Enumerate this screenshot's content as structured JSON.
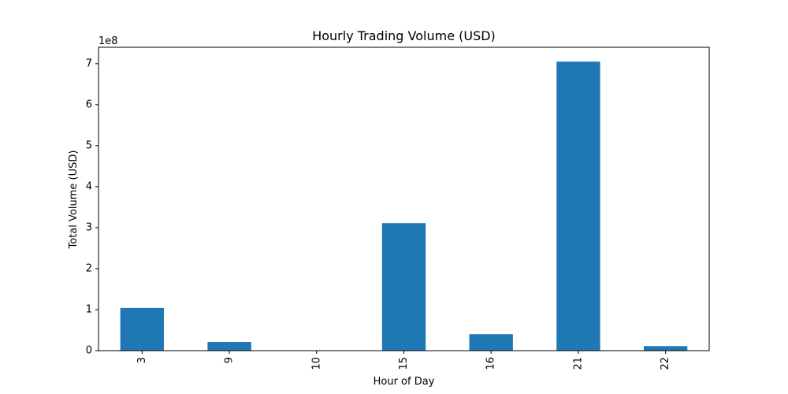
{
  "chart_data": {
    "type": "bar",
    "title": "Hourly Trading Volume (USD)",
    "xlabel": "Hour of Day",
    "ylabel": "Total Volume (USD)",
    "offset_label": "1e8",
    "categories": [
      "3",
      "9",
      "10",
      "15",
      "16",
      "21",
      "22"
    ],
    "values": [
      104000000,
      21000000,
      0,
      311000000,
      40000000,
      705000000,
      11000000
    ],
    "ylim": [
      0,
      740000000
    ],
    "y_ticks": [
      0,
      100000000,
      200000000,
      300000000,
      400000000,
      500000000,
      600000000,
      700000000
    ],
    "y_tick_labels": [
      "0",
      "1",
      "2",
      "3",
      "4",
      "5",
      "6",
      "7"
    ],
    "bar_color": "#1f77b4",
    "grid": false,
    "legend": "none"
  }
}
